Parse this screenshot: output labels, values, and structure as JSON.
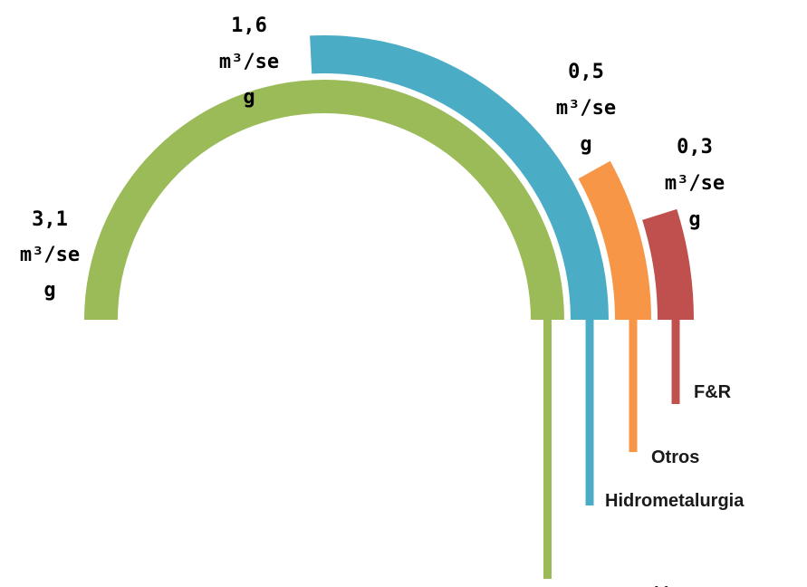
{
  "chart_data": {
    "type": "radial-bar",
    "unit_line1": "m³/se",
    "unit_line2": "g",
    "series": [
      {
        "name": "Concentración",
        "value": 3.1,
        "value_label": "3,1",
        "color": "#9BBB59"
      },
      {
        "name": "Hidrometalurgia",
        "value": 1.6,
        "value_label": "1,6",
        "color": "#4BACC6"
      },
      {
        "name": "Otros",
        "value": 0.5,
        "value_label": "0,5",
        "color": "#F79646"
      },
      {
        "name": "F&R",
        "value": 0.3,
        "value_label": "0,3",
        "color": "#C0504D"
      }
    ]
  }
}
